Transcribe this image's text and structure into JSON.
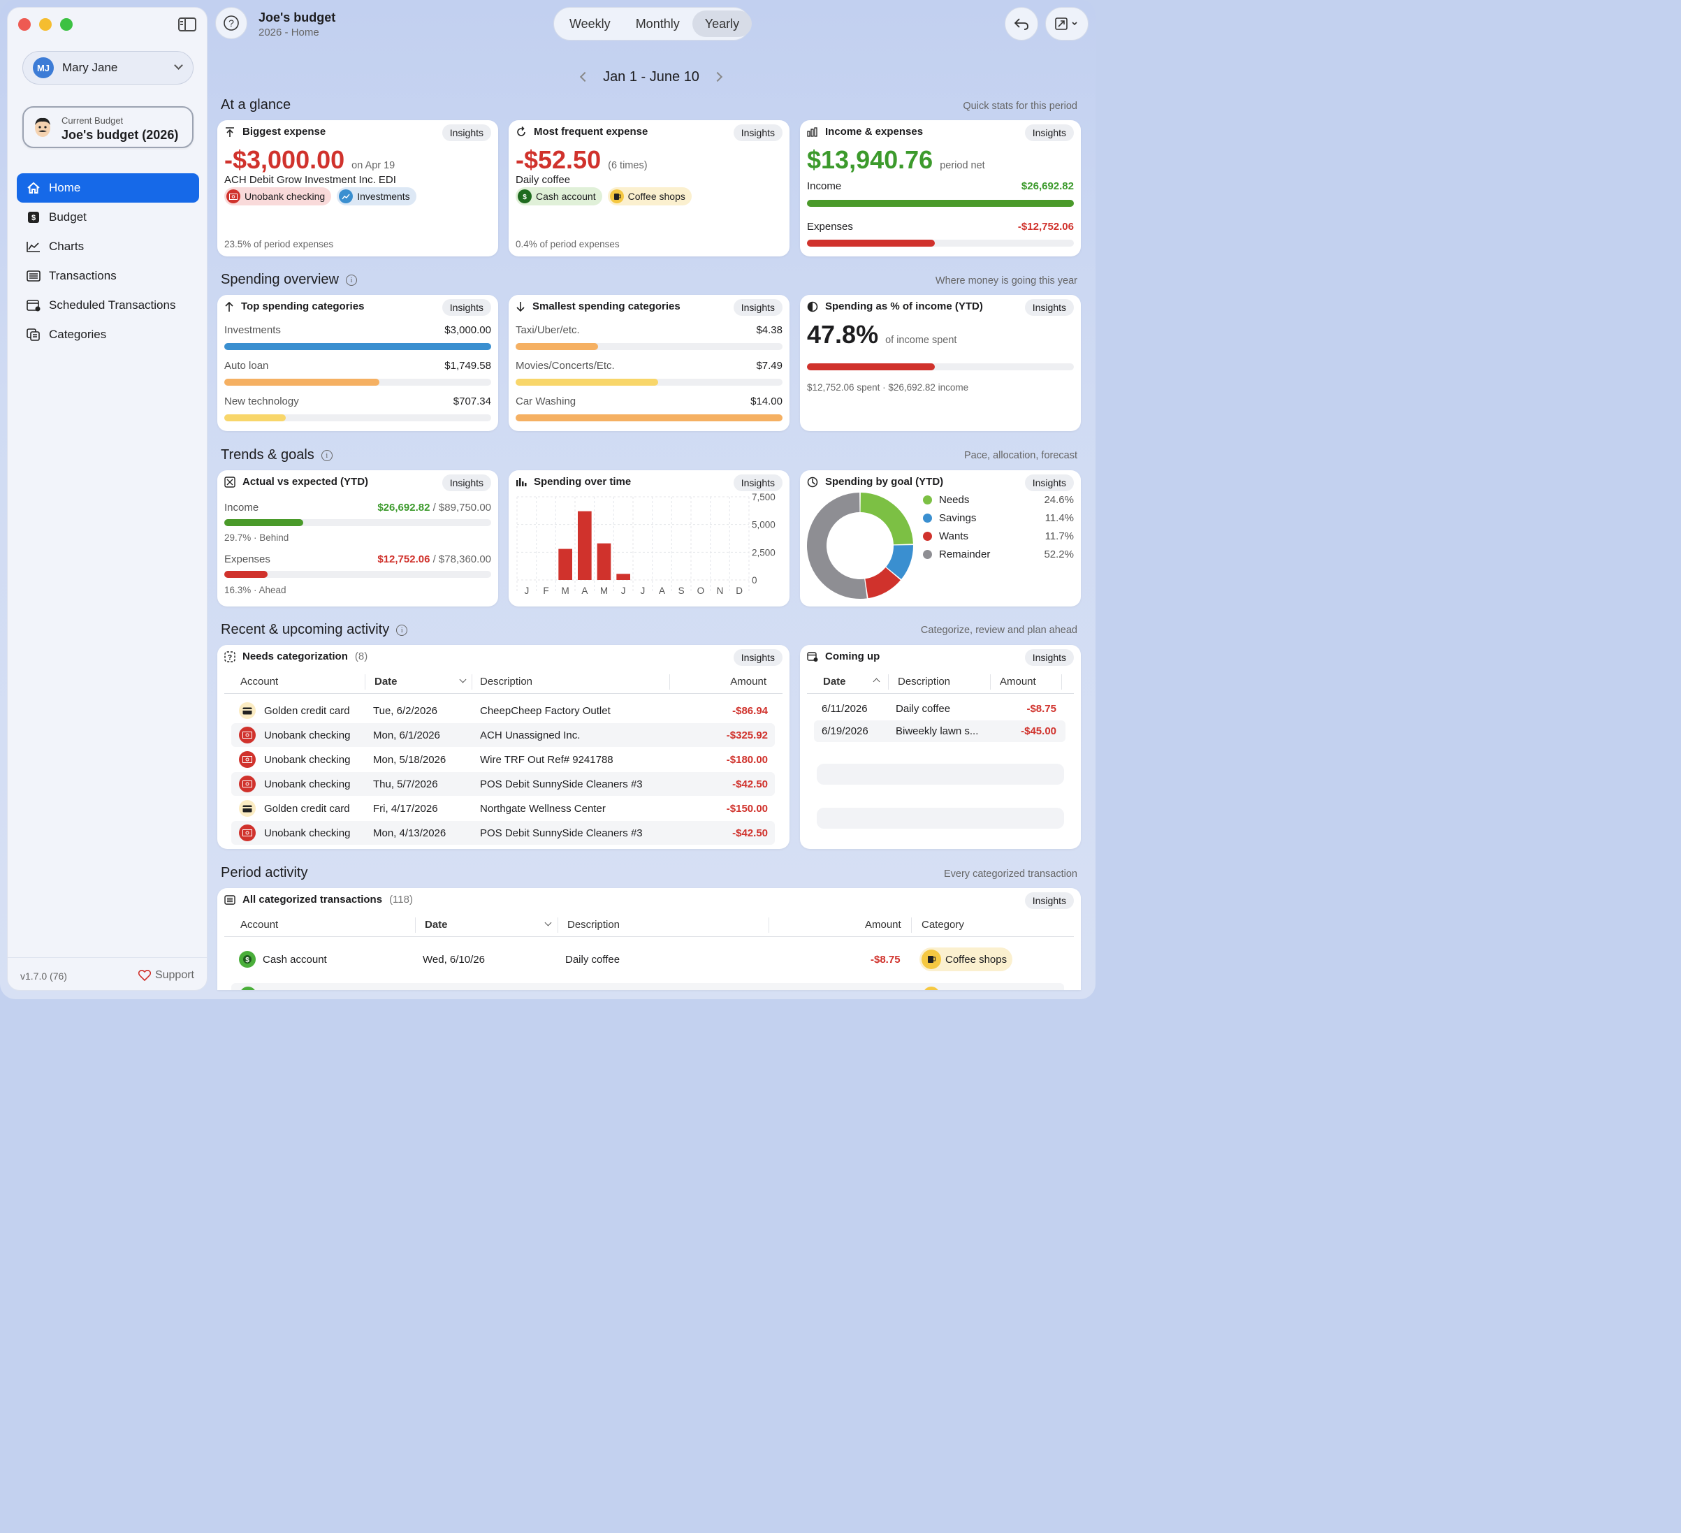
{
  "app": {
    "title": "Joe's budget",
    "subtitle": "2026 - Home"
  },
  "sidebar": {
    "user": {
      "initials": "MJ",
      "name": "Mary Jane"
    },
    "current_budget": {
      "label": "Current Budget",
      "name": "Joe's budget (2026)"
    },
    "items": [
      {
        "label": "Home",
        "icon": "house-icon"
      },
      {
        "label": "Budget",
        "icon": "dollar-icon"
      },
      {
        "label": "Charts",
        "icon": "line-chart-icon"
      },
      {
        "label": "Transactions",
        "icon": "list-icon"
      },
      {
        "label": "Scheduled Transactions",
        "icon": "calendar-icon"
      },
      {
        "label": "Categories",
        "icon": "categories-icon"
      }
    ],
    "version": "v1.7.0 (76)",
    "support": "Support"
  },
  "toolbar": {
    "segments": [
      "Weekly",
      "Monthly",
      "Yearly"
    ],
    "selected": "Yearly"
  },
  "period": "Jan 1 - June 10",
  "insights_label": "Insights",
  "sections": {
    "glance": {
      "title": "At a glance",
      "subtitle": "Quick stats for this period"
    },
    "spending": {
      "title": "Spending overview",
      "subtitle": "Where money is going this year"
    },
    "trends": {
      "title": "Trends & goals",
      "subtitle": "Pace, allocation, forecast"
    },
    "recent": {
      "title": "Recent & upcoming activity",
      "subtitle": "Categorize, review and plan ahead"
    },
    "period": {
      "title": "Period activity",
      "subtitle": "Every categorized transaction"
    }
  },
  "biggest": {
    "title": "Biggest expense",
    "amount": "-$3,000.00",
    "date": "on Apr 19",
    "desc": "ACH Debit Grow Investment Inc. EDI",
    "chip1": "Unobank checking",
    "chip2": "Investments",
    "foot": "23.5% of period expenses"
  },
  "frequent": {
    "title": "Most frequent expense",
    "amount": "-$52.50",
    "times": "(6 times)",
    "desc": "Daily coffee",
    "chip1": "Cash account",
    "chip2": "Coffee shops",
    "foot": "0.4% of period expenses"
  },
  "incexp": {
    "title": "Income & expenses",
    "net": "$13,940.76",
    "net_label": "period net",
    "income_label": "Income",
    "income": "$26,692.82",
    "expenses_label": "Expenses",
    "expenses": "-$12,752.06",
    "income_fill": 1.0,
    "expense_fill": 0.478
  },
  "top": {
    "title": "Top spending categories",
    "rows": [
      {
        "name": "Investments",
        "value": "$3,000.00",
        "fill": 1.0,
        "color": "#3a8fd0"
      },
      {
        "name": "Auto loan",
        "value": "$1,749.58",
        "fill": 0.58,
        "color": "#f5b062"
      },
      {
        "name": "New technology",
        "value": "$707.34",
        "fill": 0.23,
        "color": "#f8d66a"
      }
    ]
  },
  "smallest": {
    "title": "Smallest spending categories",
    "rows": [
      {
        "name": "Taxi/Uber/etc.",
        "value": "$4.38",
        "fill": 0.31,
        "color": "#f5b062"
      },
      {
        "name": "Movies/Concerts/Etc.",
        "value": "$7.49",
        "fill": 0.535,
        "color": "#f8d66a"
      },
      {
        "name": "Car Washing",
        "value": "$14.00",
        "fill": 1.0,
        "color": "#f5b062"
      }
    ]
  },
  "pct": {
    "title": "Spending as % of income (YTD)",
    "value": "47.8%",
    "label": "of income spent",
    "fill": 0.478,
    "foot": "$12,752.06 spent · $26,692.82 income"
  },
  "actual": {
    "title": "Actual vs expected (YTD)",
    "income_label": "Income",
    "income": "$26,692.82",
    "income_exp": " / $89,750.00",
    "income_fill": 0.297,
    "income_note": "29.7% · Behind",
    "expenses_label": "Expenses",
    "expenses": "$12,752.06",
    "expenses_exp": " / $78,360.00",
    "expense_fill": 0.163,
    "expense_note": "16.3% · Ahead"
  },
  "chart_data": {
    "type": "bar",
    "title": "Spending over time",
    "categories": [
      "J",
      "F",
      "M",
      "A",
      "M",
      "J",
      "J",
      "A",
      "S",
      "O",
      "N",
      "D"
    ],
    "values": [
      0,
      0,
      2800,
      6200,
      3300,
      550,
      0,
      0,
      0,
      0,
      0,
      0
    ],
    "ylim": [
      0,
      7500
    ],
    "yticks": [
      "7,500",
      "5,000",
      "2,500",
      "0"
    ],
    "color": "#d0322c",
    "grid": true
  },
  "goal": {
    "title": "Spending by goal (YTD)",
    "items": [
      {
        "name": "Needs",
        "pct": "24.6%",
        "value": 24.6,
        "color": "#7cc044"
      },
      {
        "name": "Savings",
        "pct": "11.4%",
        "value": 11.4,
        "color": "#3a8fd0"
      },
      {
        "name": "Wants",
        "pct": "11.7%",
        "value": 11.7,
        "color": "#d0322c"
      },
      {
        "name": "Remainder",
        "pct": "52.2%",
        "value": 52.2,
        "color": "#8e8e93"
      }
    ]
  },
  "needs": {
    "title": "Needs categorization",
    "count": "(8)",
    "cols": [
      "Account",
      "Date",
      "Description",
      "Amount"
    ],
    "rows": [
      {
        "account": "Golden credit card",
        "type": "card",
        "date": "Tue, 6/2/2026",
        "desc": "CheepCheep Factory Outlet",
        "amount": "-$86.94"
      },
      {
        "account": "Unobank checking",
        "type": "bank",
        "date": "Mon, 6/1/2026",
        "desc": "ACH Unassigned Inc.",
        "amount": "-$325.92"
      },
      {
        "account": "Unobank checking",
        "type": "bank",
        "date": "Mon, 5/18/2026",
        "desc": "Wire TRF Out Ref# 9241788",
        "amount": "-$180.00"
      },
      {
        "account": "Unobank checking",
        "type": "bank",
        "date": "Thu, 5/7/2026",
        "desc": "POS Debit SunnySide Cleaners #3",
        "amount": "-$42.50"
      },
      {
        "account": "Golden credit card",
        "type": "card",
        "date": "Fri, 4/17/2026",
        "desc": "Northgate Wellness Center",
        "amount": "-$150.00"
      },
      {
        "account": "Unobank checking",
        "type": "bank",
        "date": "Mon, 4/13/2026",
        "desc": "POS Debit SunnySide Cleaners #3",
        "amount": "-$42.50"
      }
    ]
  },
  "coming": {
    "title": "Coming up",
    "cols": [
      "Date",
      "Description",
      "Amount"
    ],
    "rows": [
      {
        "date": "6/11/2026",
        "desc": "Daily coffee",
        "amount": "-$8.75"
      },
      {
        "date": "6/19/2026",
        "desc": "Biweekly lawn s...",
        "amount": "-$45.00"
      }
    ]
  },
  "all": {
    "title": "All categorized transactions",
    "count": "(118)",
    "cols": [
      "Account",
      "Date",
      "Description",
      "Amount",
      "Category"
    ],
    "rows": [
      {
        "account": "Cash account",
        "date": "Wed, 6/10/26",
        "desc": "Daily coffee",
        "amount": "-$8.75",
        "category": "Coffee shops"
      }
    ]
  }
}
